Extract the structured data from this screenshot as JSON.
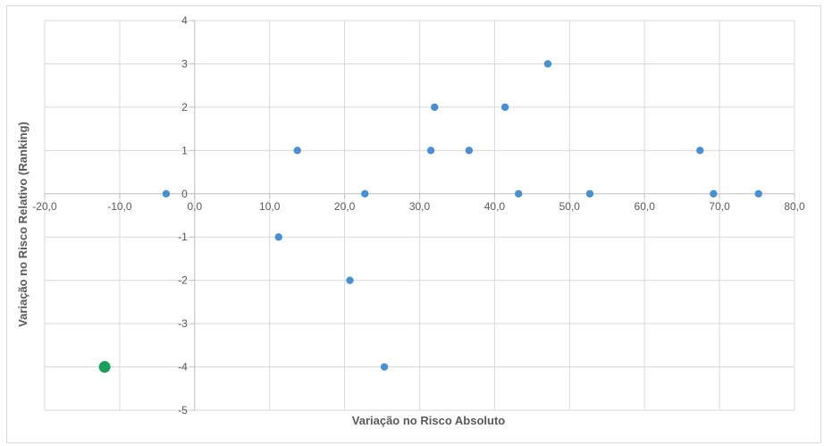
{
  "chart_data": {
    "type": "scatter",
    "title": "",
    "xlabel": "Variação no Risco Absoluto",
    "ylabel": "Variação no Risco Relativo (Ranking)",
    "xlim": [
      -20,
      80
    ],
    "ylim": [
      -5,
      4
    ],
    "x_ticks": [
      -20,
      -10,
      0,
      10,
      20,
      30,
      40,
      50,
      60,
      70,
      80
    ],
    "x_tick_labels": [
      "-20,0",
      "-10,0",
      "0,0",
      "10,0",
      "20,0",
      "30,0",
      "40,0",
      "50,0",
      "60,0",
      "70,0",
      "80,0"
    ],
    "y_ticks": [
      -5,
      -4,
      -3,
      -2,
      -1,
      0,
      1,
      2,
      3,
      4
    ],
    "y_tick_labels": [
      "-5",
      "-4",
      "-3",
      "-2",
      "-1",
      "0",
      "1",
      "2",
      "3",
      "4"
    ],
    "grid": true,
    "legend": "none",
    "series": [
      {
        "color": "#4a90d0",
        "points": [
          {
            "x": -3.8,
            "y": 0
          },
          {
            "x": 11.2,
            "y": -1
          },
          {
            "x": 13.7,
            "y": 1
          },
          {
            "x": 20.7,
            "y": -2
          },
          {
            "x": 22.7,
            "y": 0
          },
          {
            "x": 25.3,
            "y": -4
          },
          {
            "x": 31.5,
            "y": 1
          },
          {
            "x": 32.0,
            "y": 2
          },
          {
            "x": 36.6,
            "y": 1
          },
          {
            "x": 41.4,
            "y": 2
          },
          {
            "x": 43.2,
            "y": 0
          },
          {
            "x": 47.1,
            "y": 3
          },
          {
            "x": 52.7,
            "y": 0
          },
          {
            "x": 67.4,
            "y": 1
          },
          {
            "x": 69.2,
            "y": 0
          },
          {
            "x": 75.2,
            "y": 0
          }
        ]
      },
      {
        "color": "#1a9e5a",
        "highlight": true,
        "points": [
          {
            "x": -12.0,
            "y": -4
          }
        ]
      }
    ],
    "colors": {
      "grid": "#d9d9d9",
      "axis": "#bfbfbf",
      "text": "#595959"
    }
  }
}
